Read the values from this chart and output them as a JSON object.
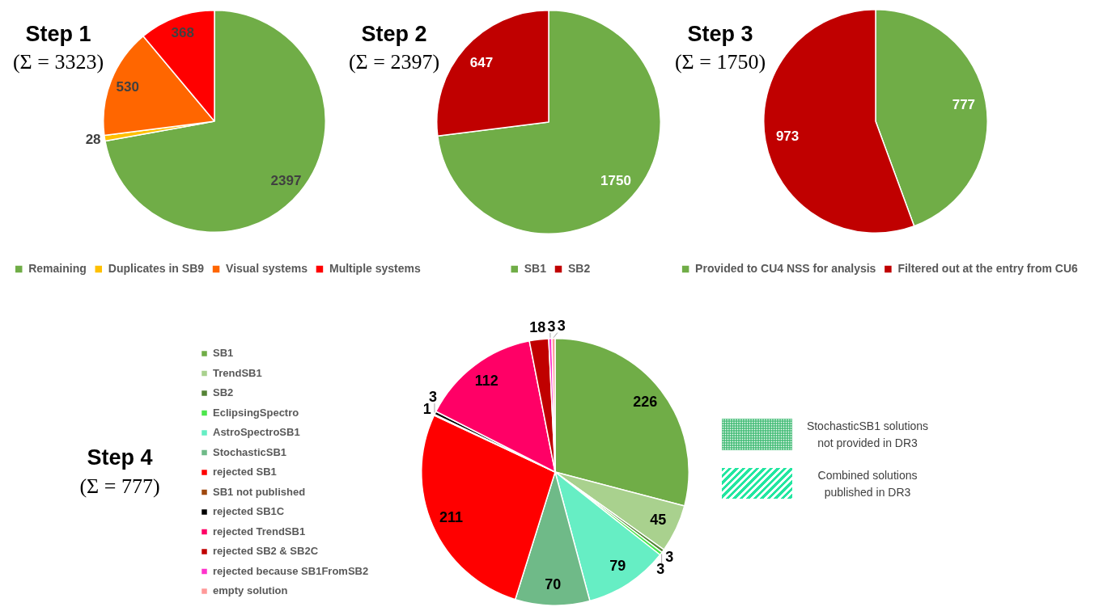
{
  "chart_data": [
    {
      "type": "pie",
      "title": "Step 1",
      "subtitle": "(Σ = 3323)",
      "categories": [
        "Remaining",
        "Duplicates in SB9",
        "Visual systems",
        "Multiple systems"
      ],
      "values": [
        2397,
        28,
        530,
        368
      ],
      "colors": [
        "#70ad47",
        "#ffc000",
        "#ff6600",
        "#ff0000"
      ],
      "data_labels": true,
      "legend": "bottom"
    },
    {
      "type": "pie",
      "title": "Step 2",
      "subtitle": "(Σ = 2397)",
      "categories": [
        "SB1",
        "SB2"
      ],
      "values": [
        1750,
        647
      ],
      "colors": [
        "#70ad47",
        "#c00000"
      ],
      "data_labels": true,
      "legend": "bottom"
    },
    {
      "type": "pie",
      "title": "Step 3",
      "subtitle": "(Σ = 1750)",
      "categories": [
        "Provided to CU4 NSS for analysis",
        "Filtered out at the entry from CU6"
      ],
      "values": [
        777,
        973
      ],
      "colors": [
        "#70ad47",
        "#c00000"
      ],
      "data_labels": true,
      "legend": "bottom"
    },
    {
      "type": "pie",
      "title": "Step 4",
      "subtitle": "(Σ = 777)",
      "categories": [
        "SB1",
        "TrendSB1",
        "SB2",
        "EclipsingSpectro",
        "AstroSpectroSB1",
        "StochasticSB1",
        "rejected SB1",
        "SB1 not published",
        "rejected SB1C",
        "rejected TrendSB1",
        "rejected SB2 & SB2C",
        "rejected because SB1FromSB2",
        "empty solution"
      ],
      "values": [
        226,
        45,
        3,
        3,
        79,
        70,
        211,
        1,
        3,
        112,
        18,
        3,
        3
      ],
      "colors": [
        "#70ad47",
        "#a9d18e",
        "#548235",
        "#4ce64c",
        "#66eec4",
        "#6fba88",
        "#ff0000",
        "#9e480e",
        "#000000",
        "#ff0066",
        "#c00000",
        "#ff33cc",
        "#ff9999"
      ],
      "data_labels": true,
      "legend": "left",
      "annotations": [
        "StochasticSB1 solutions not provided in DR3",
        "Combined solutions published in DR3"
      ]
    }
  ]
}
